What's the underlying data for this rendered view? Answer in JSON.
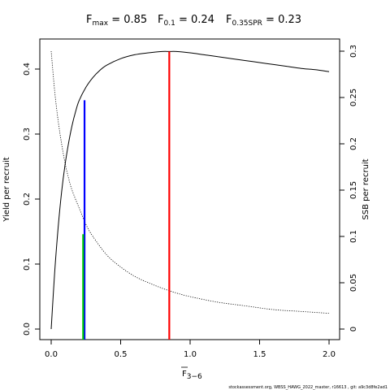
{
  "title": {
    "fmax": {
      "main": "F",
      "sub": "max",
      "value": " = 0.85"
    },
    "f01": {
      "main": "F",
      "sub": "0.1",
      "value": " = 0.24"
    },
    "f35spr": {
      "main": "F",
      "sub": "0.35SPR",
      "value": " = 0.23"
    }
  },
  "footer": "stockassessment.org, WBSS_HAWG_2022_master, r16613 , git: a9c3d8fe2ad1",
  "chart_data": {
    "type": "line",
    "xlabel": {
      "main": "F",
      "sub": "3−6",
      "overline": true
    },
    "ylabel_left": "Yield per recruit",
    "ylabel_right": "SSB per recruit",
    "xlim": [
      0,
      2
    ],
    "ylim_left": [
      0,
      0.43
    ],
    "ylim_right": [
      0,
      0.3
    ],
    "x_ticks": [
      0,
      0.5,
      1,
      1.5,
      2
    ],
    "x_tick_labels": [
      "0.0",
      "0.5",
      "1.0",
      "1.5",
      "2.0"
    ],
    "y_left_ticks": [
      0,
      0.1,
      0.2,
      0.3,
      0.4
    ],
    "y_left_tick_labels": [
      "0.0",
      "0.1",
      "0.2",
      "0.3",
      "0.4"
    ],
    "y_right_ticks": [
      0,
      0.05,
      0.1,
      0.15,
      0.2,
      0.25,
      0.3
    ],
    "y_right_tick_labels": [
      "0",
      "0.05",
      "0.1",
      "0.15",
      "0.2",
      "0.25",
      "0.3"
    ],
    "series": [
      {
        "axis": "left",
        "style": "solid",
        "color": "#000000",
        "x": [
          0,
          0.025,
          0.05,
          0.075,
          0.1,
          0.125,
          0.15,
          0.175,
          0.2,
          0.25,
          0.3,
          0.35,
          0.4,
          0.5,
          0.6,
          0.7,
          0.8,
          0.85,
          0.9,
          1.0,
          1.1,
          1.2,
          1.3,
          1.4,
          1.5,
          1.6,
          1.7,
          1.8,
          1.9,
          2.0
        ],
        "y": [
          0,
          0.087,
          0.156,
          0.211,
          0.253,
          0.286,
          0.313,
          0.334,
          0.351,
          0.372,
          0.387,
          0.398,
          0.406,
          0.416,
          0.422,
          0.425,
          0.427,
          0.427,
          0.427,
          0.425,
          0.422,
          0.419,
          0.416,
          0.413,
          0.41,
          0.407,
          0.404,
          0.401,
          0.399,
          0.396
        ]
      },
      {
        "axis": "right",
        "style": "dotted",
        "color": "#000000",
        "x": [
          0,
          0.025,
          0.05,
          0.075,
          0.1,
          0.125,
          0.15,
          0.2,
          0.25,
          0.3,
          0.4,
          0.5,
          0.6,
          0.7,
          0.8,
          0.9,
          1.0,
          1.2,
          1.4,
          1.6,
          1.8,
          2.0
        ],
        "y": [
          0.3,
          0.257,
          0.225,
          0.2,
          0.179,
          0.163,
          0.15,
          0.131,
          0.113,
          0.1,
          0.08,
          0.067,
          0.057,
          0.05,
          0.044,
          0.039,
          0.035,
          0.029,
          0.025,
          0.021,
          0.019,
          0.017
        ]
      }
    ],
    "reference_lines": [
      {
        "name": "Fmax",
        "x": 0.85,
        "y_left": 0.427,
        "color": "#ff0000"
      },
      {
        "name": "F0.1",
        "x": 0.24,
        "y_left": 0.352,
        "color": "#0000ff"
      },
      {
        "name": "F0.35SPR",
        "x": 0.23,
        "y_left": 0.146,
        "color": "#00cc00"
      }
    ]
  }
}
